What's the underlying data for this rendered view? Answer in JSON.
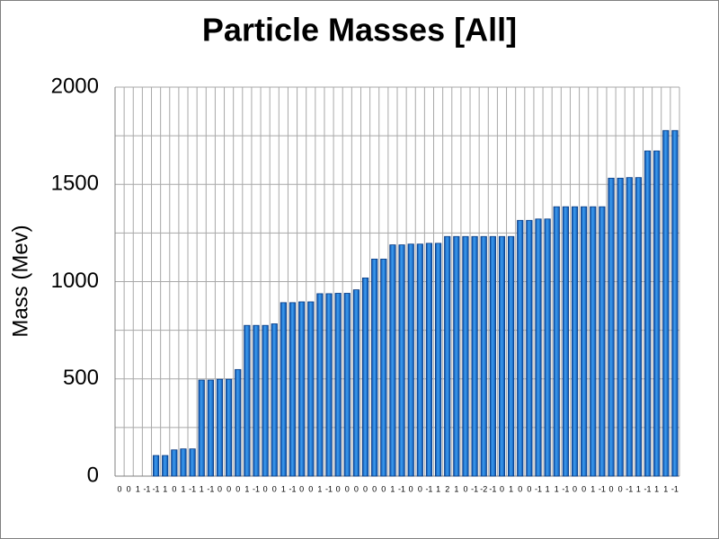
{
  "chart_data": {
    "type": "bar",
    "title": "Particle Masses [All]",
    "y_label": "Mass (Mev)",
    "categories": [
      "0",
      "0",
      "1",
      "-1",
      "-1",
      "1",
      "0",
      "1",
      "-1",
      "1",
      "-1",
      "0",
      "0",
      "0",
      "1",
      "-1",
      "0",
      "0",
      "1",
      "-1",
      "0",
      "0",
      "1",
      "-1",
      "0",
      "0",
      "0",
      "0",
      "0",
      "0",
      "1",
      "-1",
      "0",
      "0",
      "-1",
      "1",
      "2",
      "1",
      "0",
      "-1",
      "-2",
      "-1",
      "0",
      "1",
      "0",
      "0",
      "-1",
      "1",
      "1",
      "-1",
      "0",
      "0",
      "1",
      "-1",
      "0",
      "0",
      "-1",
      "1",
      "-1",
      "1",
      "1",
      "-1"
    ],
    "values": [
      0,
      0,
      0,
      0,
      106,
      106,
      135,
      140,
      140,
      494,
      494,
      498,
      498,
      548,
      775,
      775,
      775,
      783,
      892,
      892,
      896,
      896,
      938,
      938,
      940,
      940,
      958,
      1019,
      1116,
      1116,
      1189,
      1189,
      1193,
      1193,
      1197,
      1197,
      1232,
      1232,
      1232,
      1232,
      1232,
      1232,
      1232,
      1232,
      1315,
      1315,
      1322,
      1322,
      1385,
      1385,
      1385,
      1385,
      1385,
      1385,
      1532,
      1532,
      1535,
      1535,
      1672,
      1672,
      1777,
      1777
    ],
    "color": "#1f78d8",
    "ylim": [
      0,
      2000
    ],
    "yticks": [
      0,
      500,
      1000,
      1500,
      2000
    ],
    "yminor_ticks": [
      250,
      750,
      1250,
      1750
    ],
    "grid": true
  }
}
